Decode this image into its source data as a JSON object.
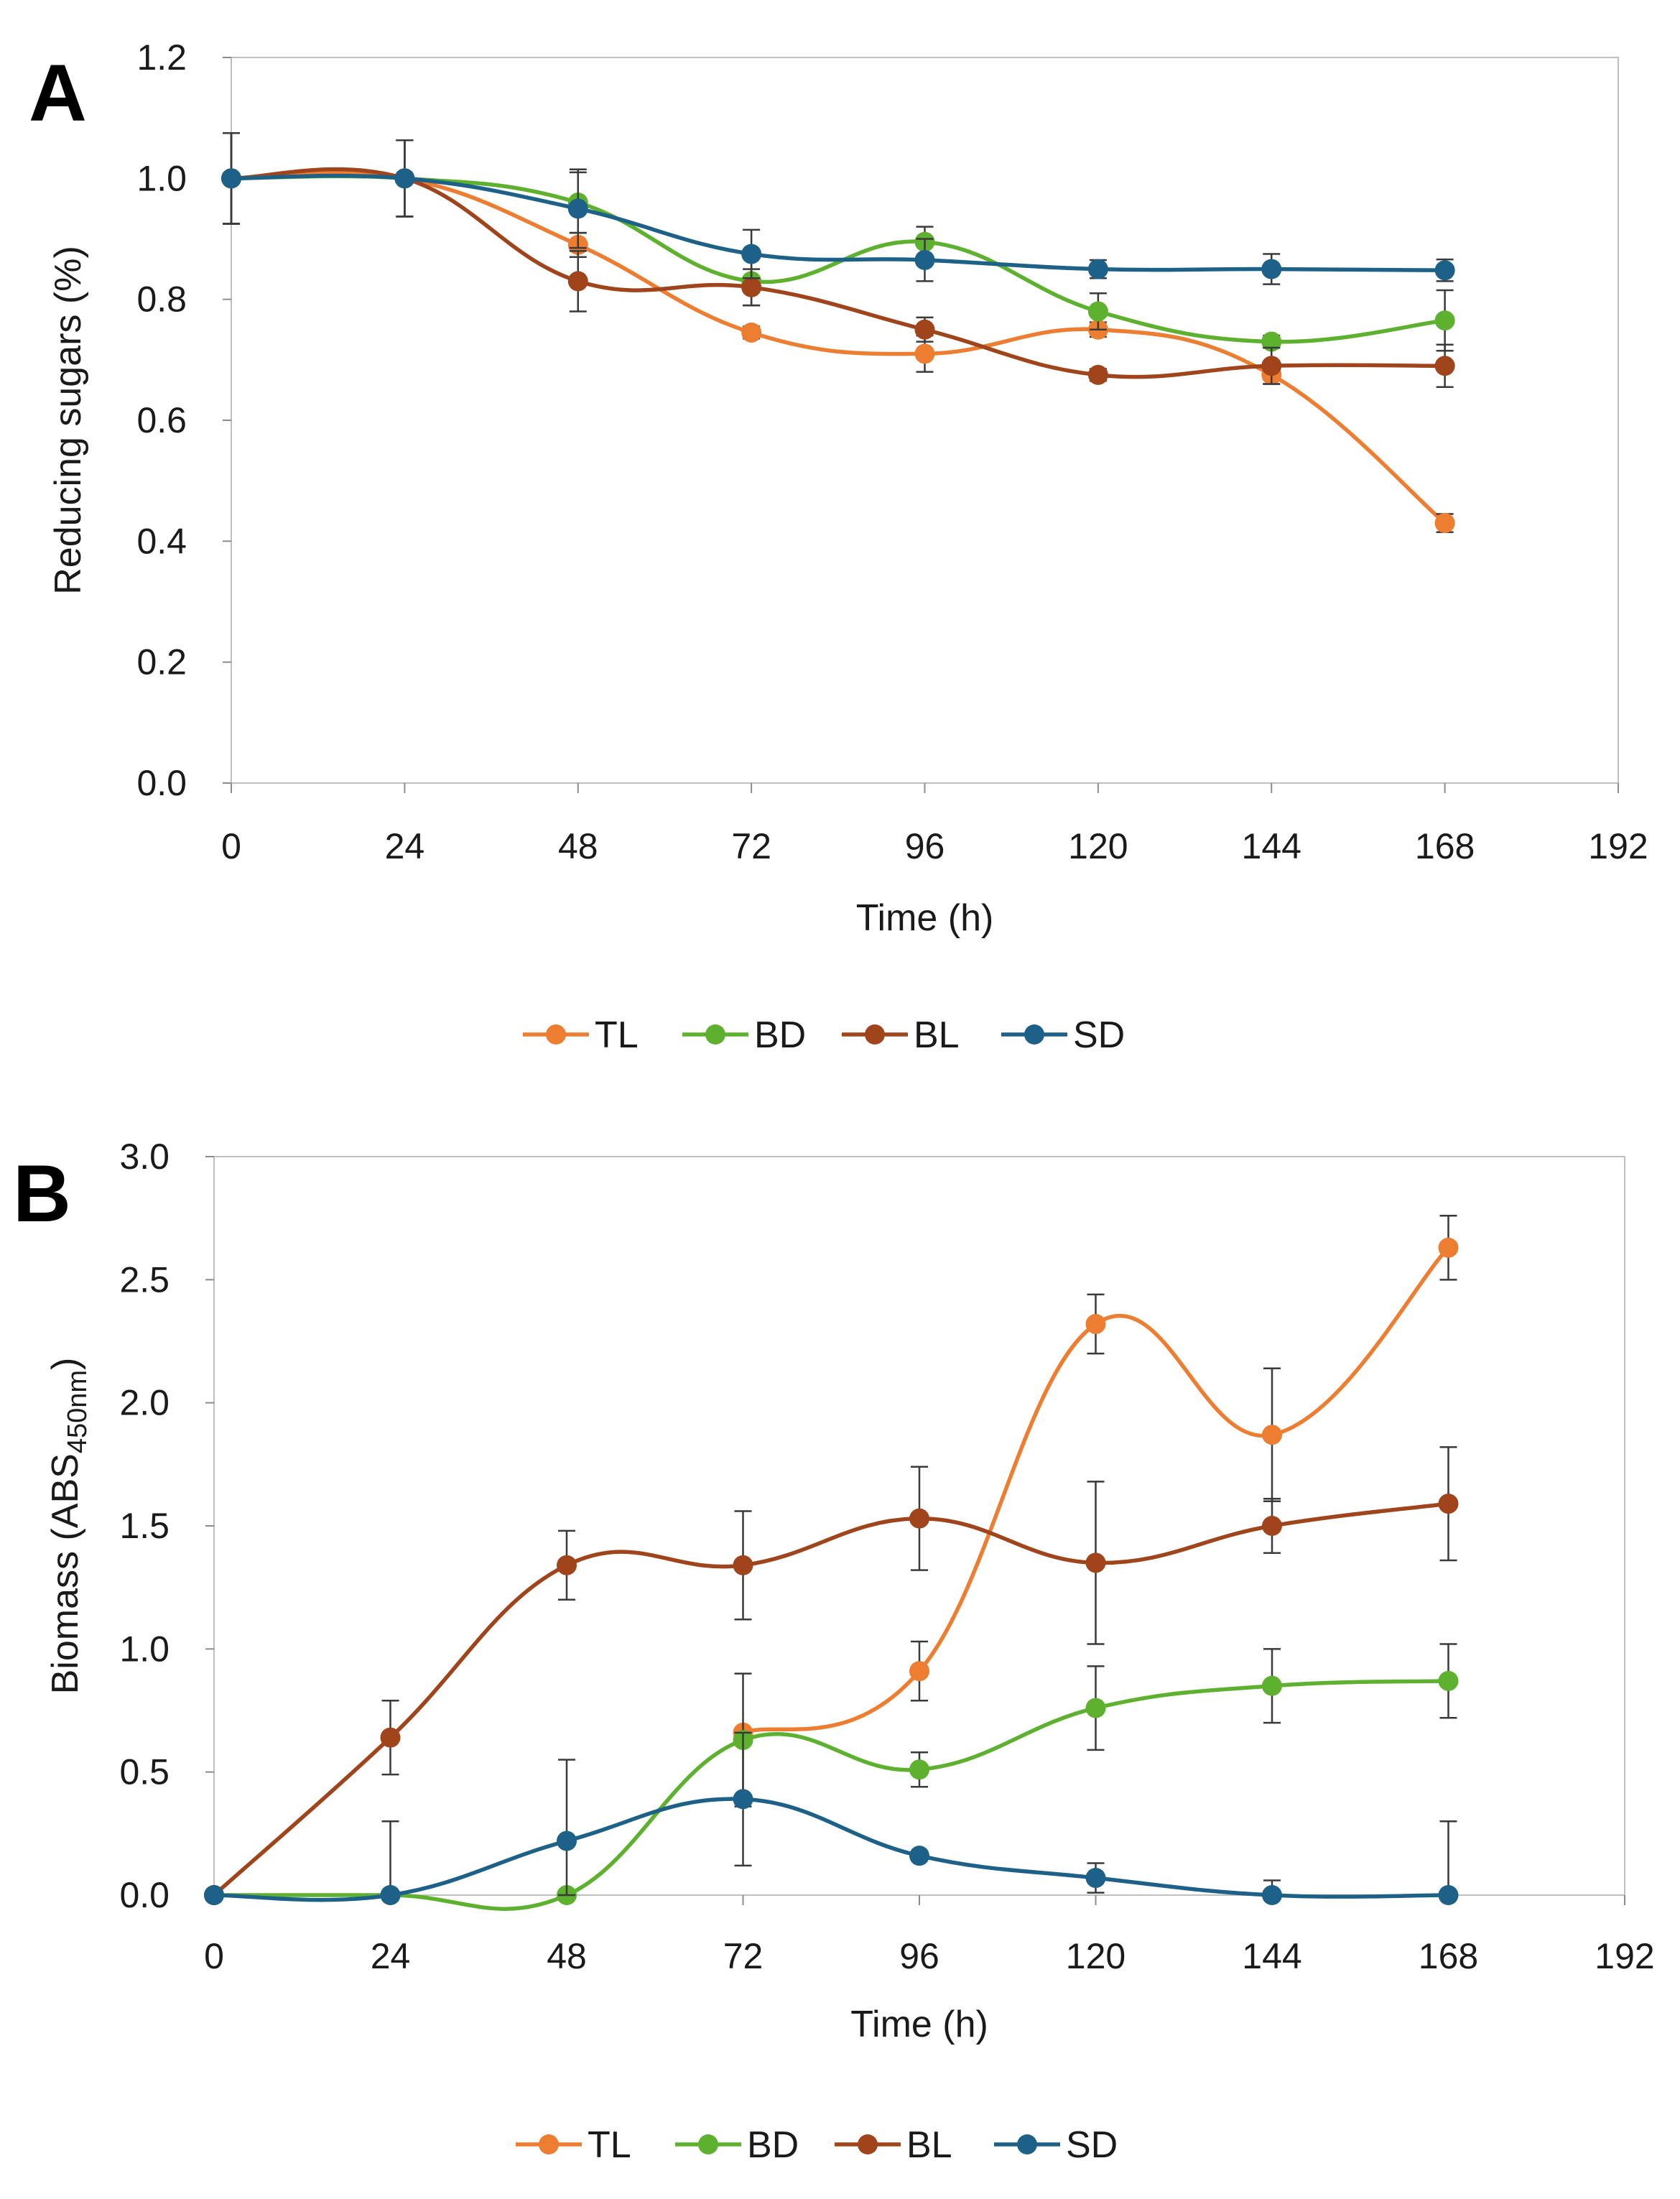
{
  "chart_data": [
    {
      "panel": "A",
      "type": "line",
      "title": "",
      "xlabel": "Time (h)",
      "ylabel": "Reducing sugars (%)",
      "xlim": [
        0,
        192
      ],
      "ylim": [
        0,
        1.2
      ],
      "xticks": [
        0,
        24,
        48,
        72,
        96,
        120,
        144,
        168,
        192
      ],
      "yticks": [
        0.0,
        0.2,
        0.4,
        0.6,
        0.8,
        1.0,
        1.2
      ],
      "ytick_labels": [
        "0.0",
        "0.2",
        "0.4",
        "0.6",
        "0.8",
        "1.0",
        "1.2"
      ],
      "grid": false,
      "legend_position": "bottom",
      "x": [
        0,
        24,
        48,
        72,
        96,
        120,
        144,
        168
      ],
      "series": [
        {
          "name": "TL",
          "color": "#ED7D31",
          "values": [
            1.0,
            1.0,
            0.89,
            0.745,
            0.71,
            0.75,
            0.675,
            0.43
          ],
          "errors": [
            0.075,
            0.063,
            0.02,
            0.01,
            0.03,
            0.012,
            0.015,
            0.015
          ]
        },
        {
          "name": "BD",
          "color": "#5DB12F",
          "values": [
            1.0,
            1.0,
            0.96,
            0.83,
            0.895,
            0.78,
            0.73,
            0.765
          ],
          "errors": [
            0.075,
            0.063,
            0.05,
            0.04,
            0.025,
            0.03,
            0.01,
            0.05
          ]
        },
        {
          "name": "BL",
          "color": "#A0441C",
          "values": [
            1.0,
            1.0,
            0.83,
            0.82,
            0.75,
            0.675,
            0.69,
            0.69
          ],
          "errors": [
            0.075,
            0.063,
            0.05,
            0.03,
            0.02,
            0.01,
            0.03,
            0.035
          ]
        },
        {
          "name": "SD",
          "color": "#1D6188",
          "values": [
            1.0,
            1.0,
            0.95,
            0.875,
            0.865,
            0.85,
            0.85,
            0.848
          ],
          "errors": [
            0.075,
            0.063,
            0.065,
            0.04,
            0.035,
            0.015,
            0.025,
            0.018
          ]
        }
      ]
    },
    {
      "panel": "B",
      "type": "line",
      "title": "",
      "xlabel": "Time (h)",
      "ylabel_main": "Biomass (ABS",
      "ylabel_sub": "450nm",
      "ylabel_close": ")",
      "xlim": [
        0,
        192
      ],
      "ylim": [
        0,
        3.0
      ],
      "xticks": [
        0,
        24,
        48,
        72,
        96,
        120,
        144,
        168,
        192
      ],
      "yticks": [
        0.0,
        0.5,
        1.0,
        1.5,
        2.0,
        2.5,
        3.0
      ],
      "ytick_labels": [
        "0.0",
        "0.5",
        "1.0",
        "1.5",
        "2.0",
        "2.5",
        "3.0"
      ],
      "grid": false,
      "legend_position": "bottom",
      "x": [
        0,
        24,
        48,
        72,
        96,
        120,
        144,
        168
      ],
      "series": [
        {
          "name": "TL",
          "color": "#ED7D31",
          "x": [
            72,
            96,
            120,
            144,
            168
          ],
          "values": [
            0.66,
            0.91,
            2.32,
            1.87,
            2.63
          ],
          "errors": [
            0.0,
            0.12,
            0.12,
            0.27,
            0.13
          ]
        },
        {
          "name": "BD",
          "color": "#5DB12F",
          "x": [
            0,
            24,
            48,
            72,
            96,
            120,
            144,
            168
          ],
          "values": [
            0.0,
            0.0,
            0.0,
            0.63,
            0.51,
            0.76,
            0.85,
            0.87
          ],
          "errors": [
            0.0,
            0.0,
            0.0,
            0.27,
            0.07,
            0.17,
            0.15,
            0.15
          ]
        },
        {
          "name": "BL",
          "color": "#A0441C",
          "x": [
            0,
            24,
            48,
            72,
            96,
            120,
            144,
            168
          ],
          "values": [
            0.0,
            0.64,
            1.34,
            1.34,
            1.53,
            1.35,
            1.5,
            1.59
          ],
          "errors": [
            0.0,
            0.15,
            0.14,
            0.22,
            0.21,
            0.33,
            0.11,
            0.23
          ]
        },
        {
          "name": "SD",
          "color": "#1D6188",
          "x": [
            0,
            24,
            48,
            72,
            96,
            120,
            144,
            168
          ],
          "values": [
            0.0,
            0.0,
            0.22,
            0.39,
            0.16,
            0.07,
            0.0,
            0.0
          ],
          "errors": [
            0.0,
            0.3,
            0.33,
            0.27,
            0.0,
            0.06,
            0.06,
            0.3
          ]
        }
      ]
    }
  ]
}
